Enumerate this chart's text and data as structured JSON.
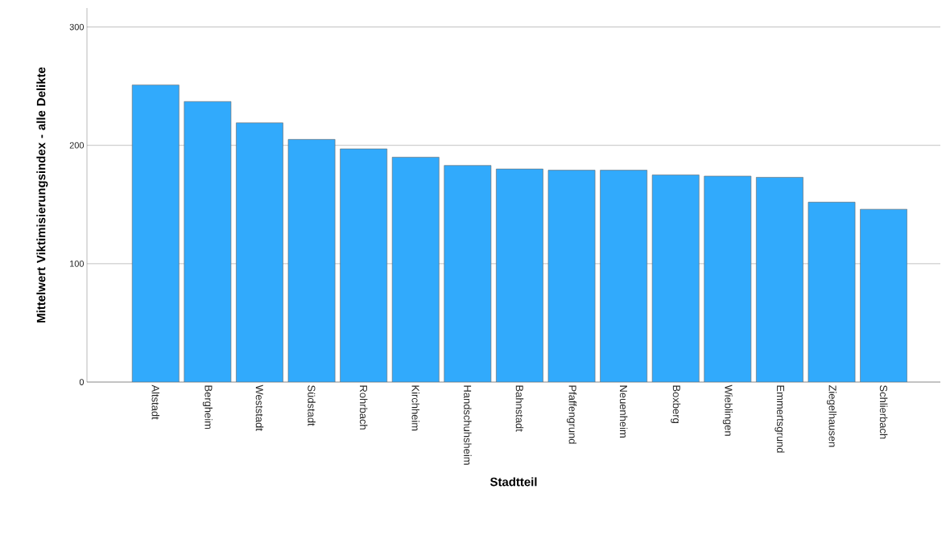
{
  "chart_data": {
    "type": "bar",
    "xlabel": "Stadtteil",
    "ylabel": "Mittelwert Viktimisierungsindex - alle Delikte",
    "categories": [
      "Altstadt",
      "Bergheim",
      "Weststadt",
      "Südstadt",
      "Rohrbach",
      "Kirchheim",
      "Handschuhsheim",
      "Bahnstadt",
      "Pfaffengrund",
      "Neuenheim",
      "Boxberg",
      "Wieblingen",
      "Emmertsgrund",
      "Ziegelhausen",
      "Schlierbach"
    ],
    "values": [
      251,
      237,
      219,
      205,
      197,
      190,
      183,
      180,
      179,
      179,
      175,
      174,
      173,
      152,
      146
    ],
    "color": "#31aafc",
    "ylim": [
      0,
      316
    ],
    "yticks": [
      0,
      100,
      200,
      300
    ],
    "grid": "y"
  }
}
